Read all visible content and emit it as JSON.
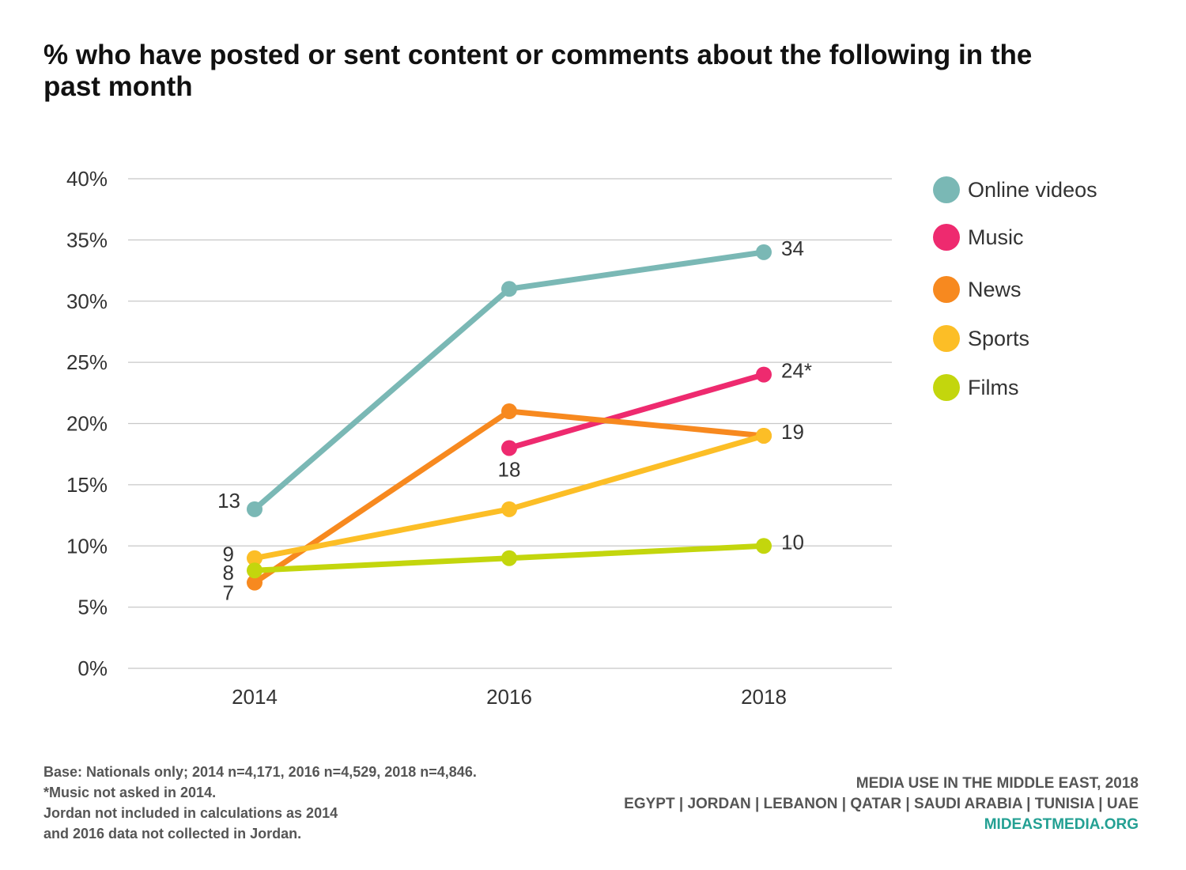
{
  "title": "% who have posted or sent content or comments about the following in the past month",
  "chart_data": {
    "type": "line",
    "title": "% who have posted or sent content or comments about the following in the past month",
    "x": [
      "2014",
      "2016",
      "2018"
    ],
    "y_ticks": [
      "0%",
      "5%",
      "10%",
      "15%",
      "20%",
      "25%",
      "30%",
      "35%",
      "40%"
    ],
    "ylim": [
      0,
      40
    ],
    "grid": true,
    "legend_position": "right",
    "series": [
      {
        "name": "Online videos",
        "color": "#7ab8b5",
        "values": [
          13,
          31,
          34
        ],
        "labels": [
          "13",
          "",
          "34"
        ]
      },
      {
        "name": "Music",
        "color": "#ee2a6f",
        "values": [
          null,
          18,
          24
        ],
        "labels": [
          "",
          "18",
          "24*"
        ]
      },
      {
        "name": "News",
        "color": "#f7891f",
        "values": [
          7,
          21,
          19
        ],
        "labels": [
          "7",
          "",
          ""
        ]
      },
      {
        "name": "Sports",
        "color": "#fcbe26",
        "values": [
          9,
          13,
          19
        ],
        "labels": [
          "9",
          "",
          "19"
        ]
      },
      {
        "name": "Films",
        "color": "#c3d60d",
        "values": [
          8,
          9,
          10
        ],
        "labels": [
          "8",
          "",
          "10"
        ]
      }
    ]
  },
  "footnotes": {
    "line1": "Base: Nationals only; 2014 n=4,171, 2016 n=4,529, 2018 n=4,846.",
    "line2": "*Music not asked in 2014.",
    "line3": "Jordan not included in calculations as 2014",
    "line4": "and 2016 data not collected in Jordan."
  },
  "credits": {
    "line1": "MEDIA USE IN THE MIDDLE EAST, 2018",
    "line2": "EGYPT | JORDAN | LEBANON | QATAR | SAUDI ARABIA | TUNISIA | UAE",
    "site": "MIDEASTMEDIA.ORG"
  }
}
